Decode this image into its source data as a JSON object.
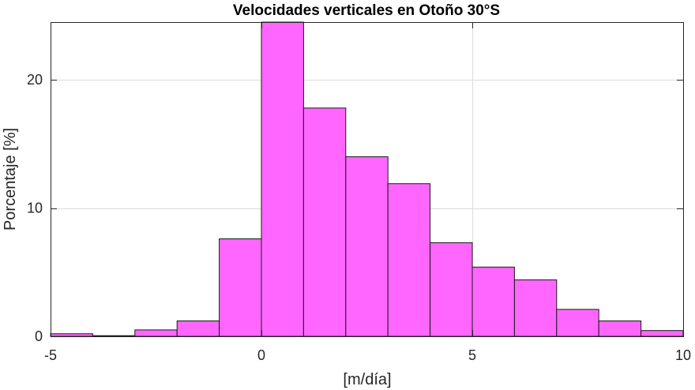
{
  "chart_data": {
    "type": "bar",
    "title": "Velocidades verticales en Otoño 30°S",
    "xlabel": "[m/día]",
    "ylabel": "Porcentaje [%]",
    "xlim": [
      -5,
      10
    ],
    "ylim": [
      0,
      24.5
    ],
    "xticks": [
      -5,
      0,
      5,
      10
    ],
    "yticks": [
      0,
      10,
      20
    ],
    "grid": true,
    "bar_color": "#ff66ff",
    "bin_edges": [
      -5,
      -4,
      -3,
      -2,
      -1,
      0,
      1,
      2,
      3,
      4,
      5,
      6,
      7,
      8,
      9,
      10
    ],
    "values": [
      0.2,
      0.05,
      0.5,
      1.2,
      7.6,
      24.5,
      17.8,
      14.0,
      11.9,
      7.3,
      5.4,
      4.4,
      2.1,
      1.2,
      0.45
    ]
  }
}
